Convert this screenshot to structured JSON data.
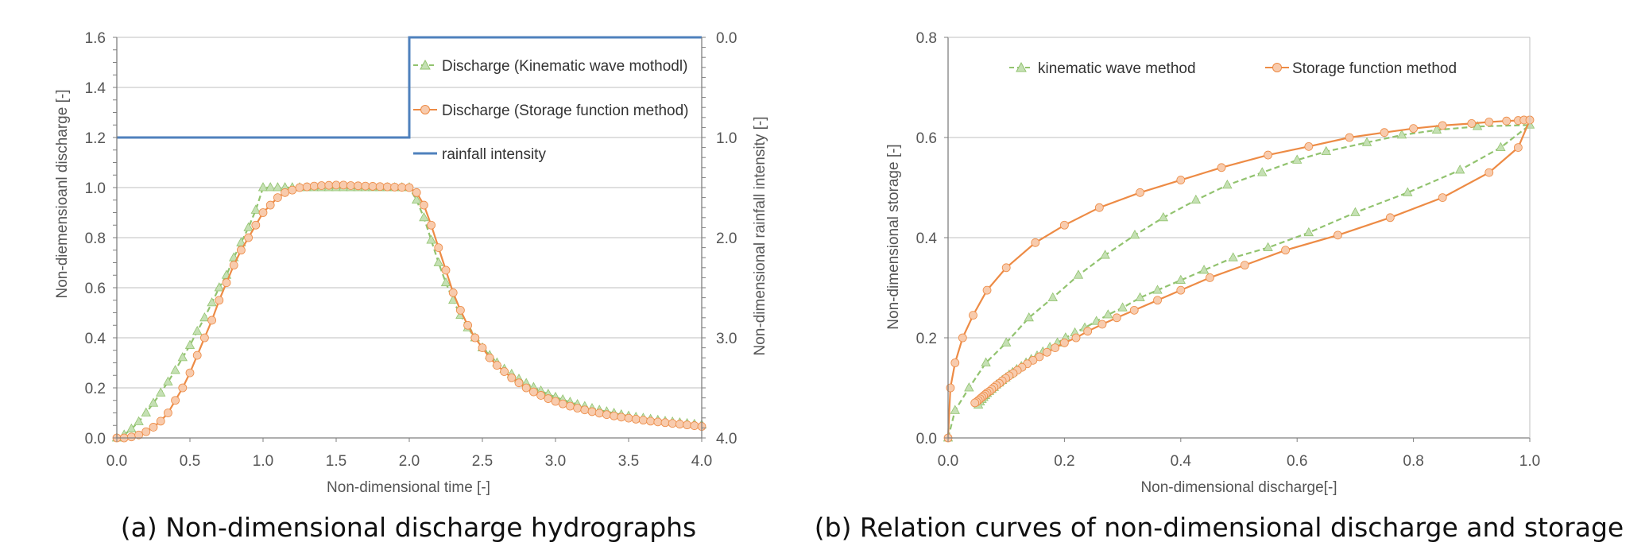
{
  "colors": {
    "kinematic": "#a9d18e",
    "kinematic_line": "#92c36f",
    "storage": "#f4b183",
    "storage_line": "#ed8b45",
    "rainfall": "#4f81bd",
    "grid": "#bfbfbf",
    "axis": "#7f7f7f"
  },
  "chart_data": [
    {
      "id": "a",
      "type": "line",
      "caption": "(a) Non-dimensional discharge hydrographs",
      "xlabel": "Non-dimensional time [-]",
      "ylabel": "Non-diemensioanl discharge [-]",
      "y2label": "Non-dimensional rainfall intensity [-]",
      "xlim": [
        0.0,
        4.0
      ],
      "ylim": [
        0.0,
        1.6
      ],
      "y2lim": [
        0.0,
        4.0
      ],
      "y2_inverted": true,
      "xticks": [
        "0.0",
        "0.5",
        "1.0",
        "1.5",
        "2.0",
        "2.5",
        "3.0",
        "3.5",
        "4.0"
      ],
      "yticks": [
        "0.0",
        "0.2",
        "0.4",
        "0.6",
        "0.8",
        "1.0",
        "1.2",
        "1.4",
        "1.6"
      ],
      "y2ticks": [
        "0.0",
        "1.0",
        "2.0",
        "3.0",
        "4.0"
      ],
      "legend": [
        {
          "label": "Discharge (Kinematic wave mothodl)",
          "series": "kinematic"
        },
        {
          "label": "Discharge (Storage function method)",
          "series": "storage"
        },
        {
          "label": "rainfall intensity",
          "series": "rainfall"
        }
      ],
      "series": [
        {
          "name": "Discharge (Kinematic wave mothodl)",
          "key": "kinematic",
          "marker": "triangle",
          "dashed": true,
          "axis": "y",
          "x": [
            0.0,
            0.05,
            0.1,
            0.15,
            0.2,
            0.25,
            0.3,
            0.35,
            0.4,
            0.45,
            0.5,
            0.55,
            0.6,
            0.65,
            0.7,
            0.75,
            0.8,
            0.85,
            0.9,
            0.95,
            1.0,
            1.05,
            1.1,
            1.15,
            1.2,
            1.25,
            1.3,
            1.35,
            1.4,
            1.45,
            1.5,
            1.55,
            1.6,
            1.65,
            1.7,
            1.75,
            1.8,
            1.85,
            1.9,
            1.95,
            2.0,
            2.05,
            2.1,
            2.15,
            2.2,
            2.25,
            2.3,
            2.35,
            2.4,
            2.45,
            2.5,
            2.55,
            2.6,
            2.65,
            2.7,
            2.75,
            2.8,
            2.85,
            2.9,
            2.95,
            3.0,
            3.05,
            3.1,
            3.15,
            3.2,
            3.25,
            3.3,
            3.35,
            3.4,
            3.45,
            3.5,
            3.55,
            3.6,
            3.65,
            3.7,
            3.75,
            3.8,
            3.85,
            3.9,
            3.95,
            4.0
          ],
          "y": [
            0.0,
            0.012,
            0.036,
            0.065,
            0.1,
            0.139,
            0.18,
            0.224,
            0.27,
            0.321,
            0.37,
            0.426,
            0.48,
            0.54,
            0.6,
            0.65,
            0.72,
            0.78,
            0.84,
            0.91,
            1.0,
            1.0,
            1.0,
            1.0,
            1.0,
            1.0,
            1.0,
            1.0,
            1.0,
            1.0,
            1.0,
            1.0,
            1.0,
            1.0,
            1.0,
            1.0,
            1.0,
            1.0,
            1.0,
            1.0,
            1.0,
            0.95,
            0.88,
            0.79,
            0.7,
            0.62,
            0.55,
            0.49,
            0.44,
            0.4,
            0.36,
            0.33,
            0.3,
            0.275,
            0.255,
            0.235,
            0.218,
            0.202,
            0.188,
            0.175,
            0.163,
            0.153,
            0.143,
            0.134,
            0.126,
            0.118,
            0.111,
            0.105,
            0.099,
            0.093,
            0.088,
            0.083,
            0.079,
            0.075,
            0.071,
            0.067,
            0.064,
            0.061,
            0.058,
            0.055,
            0.052
          ]
        },
        {
          "name": "Discharge (Storage function method)",
          "key": "storage",
          "marker": "circle",
          "dashed": false,
          "axis": "y",
          "x": [
            0.0,
            0.05,
            0.1,
            0.15,
            0.2,
            0.25,
            0.3,
            0.35,
            0.4,
            0.45,
            0.5,
            0.55,
            0.6,
            0.65,
            0.7,
            0.75,
            0.8,
            0.85,
            0.9,
            0.95,
            1.0,
            1.05,
            1.1,
            1.15,
            1.2,
            1.25,
            1.3,
            1.35,
            1.4,
            1.45,
            1.5,
            1.55,
            1.6,
            1.65,
            1.7,
            1.75,
            1.8,
            1.85,
            1.9,
            1.95,
            2.0,
            2.05,
            2.1,
            2.15,
            2.2,
            2.25,
            2.3,
            2.35,
            2.4,
            2.45,
            2.5,
            2.55,
            2.6,
            2.65,
            2.7,
            2.75,
            2.8,
            2.85,
            2.9,
            2.95,
            3.0,
            3.05,
            3.1,
            3.15,
            3.2,
            3.25,
            3.3,
            3.35,
            3.4,
            3.45,
            3.5,
            3.55,
            3.6,
            3.65,
            3.7,
            3.75,
            3.8,
            3.85,
            3.9,
            3.95,
            4.0
          ],
          "y": [
            0.0,
            0.0,
            0.004,
            0.012,
            0.025,
            0.043,
            0.067,
            0.1,
            0.15,
            0.2,
            0.26,
            0.33,
            0.4,
            0.47,
            0.55,
            0.62,
            0.69,
            0.75,
            0.8,
            0.85,
            0.9,
            0.93,
            0.96,
            0.98,
            0.99,
            1.0,
            1.003,
            1.006,
            1.008,
            1.009,
            1.01,
            1.01,
            1.008,
            1.007,
            1.006,
            1.005,
            1.004,
            1.003,
            1.002,
            1.001,
            1.0,
            0.98,
            0.93,
            0.85,
            0.76,
            0.67,
            0.58,
            0.51,
            0.45,
            0.4,
            0.36,
            0.32,
            0.29,
            0.265,
            0.24,
            0.22,
            0.2,
            0.184,
            0.17,
            0.157,
            0.146,
            0.136,
            0.127,
            0.119,
            0.112,
            0.105,
            0.099,
            0.093,
            0.088,
            0.083,
            0.079,
            0.075,
            0.071,
            0.067,
            0.064,
            0.061,
            0.058,
            0.055,
            0.052,
            0.049,
            0.046
          ]
        },
        {
          "name": "rainfall intensity",
          "key": "rainfall",
          "marker": "none",
          "dashed": false,
          "axis": "y2",
          "x": [
            0.0,
            2.0,
            2.0,
            4.0
          ],
          "y": [
            1.0,
            1.0,
            0.0,
            0.0
          ]
        }
      ]
    },
    {
      "id": "b",
      "type": "scatter",
      "caption": "(b) Relation curves of non-dimensional discharge and storage",
      "xlabel": "Non-dimensional discharge[-]",
      "ylabel": "Non-dimensional storage [-]",
      "xlim": [
        0.0,
        1.0
      ],
      "ylim": [
        0.0,
        0.8
      ],
      "xticks": [
        "0.0",
        "0.2",
        "0.4",
        "0.6",
        "0.8",
        "1.0"
      ],
      "yticks": [
        "0.0",
        "0.2",
        "0.4",
        "0.6",
        "0.8"
      ],
      "legend": [
        {
          "label": "kinematic wave method",
          "series": "kinematic"
        },
        {
          "label": "Storage function method",
          "series": "storage"
        }
      ],
      "series": [
        {
          "name": "kinematic wave method",
          "key": "kinematic",
          "marker": "triangle",
          "dashed": true,
          "x": [
            0.0,
            0.012,
            0.036,
            0.065,
            0.1,
            0.139,
            0.18,
            0.224,
            0.27,
            0.321,
            0.37,
            0.426,
            0.48,
            0.54,
            0.6,
            0.65,
            0.72,
            0.78,
            0.84,
            0.91,
            1.0,
            0.95,
            0.88,
            0.79,
            0.7,
            0.62,
            0.55,
            0.49,
            0.44,
            0.4,
            0.36,
            0.33,
            0.3,
            0.275,
            0.255,
            0.235,
            0.218,
            0.202,
            0.188,
            0.175,
            0.163,
            0.153,
            0.143,
            0.134,
            0.126,
            0.118,
            0.111,
            0.105,
            0.099,
            0.093,
            0.088,
            0.083,
            0.079,
            0.075,
            0.071,
            0.067,
            0.064,
            0.061,
            0.058,
            0.055,
            0.052
          ],
          "y": [
            0.0,
            0.055,
            0.1,
            0.15,
            0.19,
            0.24,
            0.28,
            0.325,
            0.365,
            0.405,
            0.44,
            0.475,
            0.505,
            0.53,
            0.555,
            0.572,
            0.59,
            0.605,
            0.615,
            0.622,
            0.625,
            0.58,
            0.535,
            0.49,
            0.45,
            0.41,
            0.38,
            0.36,
            0.335,
            0.315,
            0.295,
            0.28,
            0.26,
            0.246,
            0.233,
            0.22,
            0.21,
            0.2,
            0.19,
            0.181,
            0.172,
            0.164,
            0.157,
            0.15,
            0.143,
            0.137,
            0.131,
            0.126,
            0.12,
            0.115,
            0.11,
            0.106,
            0.101,
            0.097,
            0.093,
            0.089,
            0.085,
            0.081,
            0.077,
            0.072,
            0.066
          ]
        },
        {
          "name": "Storage function method",
          "key": "storage",
          "marker": "circle",
          "dashed": false,
          "x": [
            0.0,
            0.004,
            0.012,
            0.025,
            0.043,
            0.067,
            0.1,
            0.15,
            0.2,
            0.26,
            0.33,
            0.4,
            0.47,
            0.55,
            0.62,
            0.69,
            0.75,
            0.8,
            0.85,
            0.9,
            0.93,
            0.96,
            0.98,
            0.99,
            1.0,
            0.98,
            0.93,
            0.85,
            0.76,
            0.67,
            0.58,
            0.51,
            0.45,
            0.4,
            0.36,
            0.32,
            0.29,
            0.265,
            0.24,
            0.22,
            0.2,
            0.184,
            0.17,
            0.157,
            0.146,
            0.136,
            0.127,
            0.119,
            0.112,
            0.105,
            0.099,
            0.093,
            0.088,
            0.083,
            0.079,
            0.075,
            0.071,
            0.067,
            0.064,
            0.061,
            0.058,
            0.055,
            0.052,
            0.049,
            0.046
          ],
          "y": [
            0.0,
            0.1,
            0.15,
            0.2,
            0.245,
            0.295,
            0.34,
            0.39,
            0.425,
            0.46,
            0.49,
            0.515,
            0.54,
            0.565,
            0.582,
            0.6,
            0.61,
            0.618,
            0.624,
            0.628,
            0.631,
            0.633,
            0.634,
            0.635,
            0.635,
            0.58,
            0.53,
            0.48,
            0.44,
            0.405,
            0.375,
            0.345,
            0.32,
            0.295,
            0.275,
            0.255,
            0.24,
            0.227,
            0.213,
            0.2,
            0.19,
            0.18,
            0.171,
            0.162,
            0.155,
            0.148,
            0.141,
            0.135,
            0.129,
            0.124,
            0.119,
            0.114,
            0.109,
            0.105,
            0.101,
            0.097,
            0.093,
            0.09,
            0.087,
            0.084,
            0.081,
            0.078,
            0.075,
            0.072,
            0.07
          ]
        }
      ]
    }
  ]
}
